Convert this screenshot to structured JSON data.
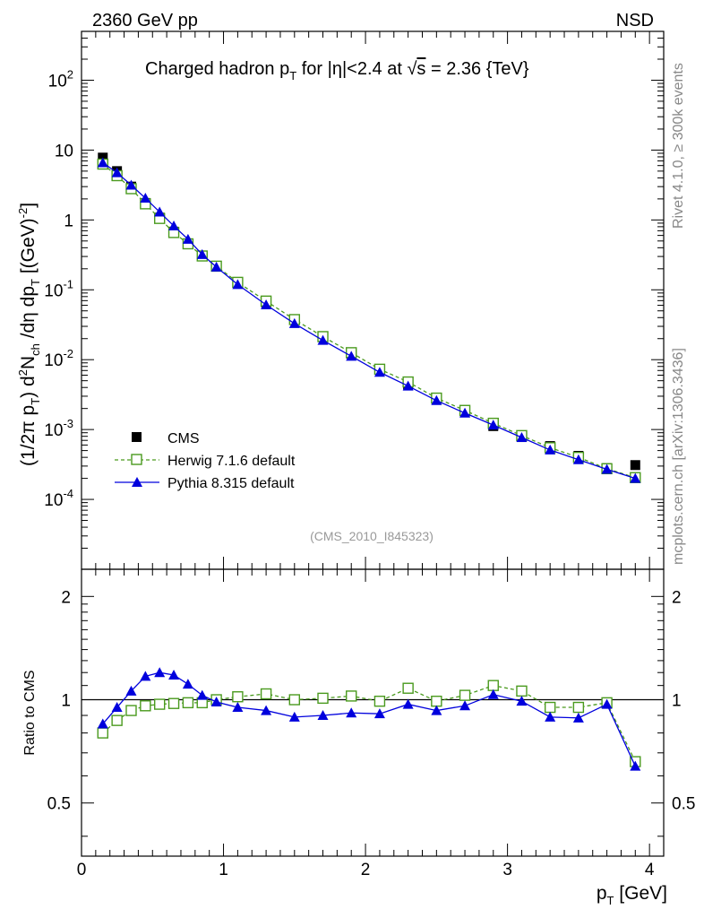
{
  "header": {
    "left": "2360 GeV pp",
    "right": "NSD"
  },
  "side_labels": {
    "rivet": "Rivet 4.1.0, ≥ 300k events",
    "mcplots": "mcplots.cern.ch [arXiv:1306.3436]"
  },
  "watermark": "(CMS_2010_I845323)",
  "chart_data": [
    {
      "type": "scatter",
      "title": "Charged hadron p_T for |η|<2.4 at √s = 2.36 {TeV}",
      "title_parts": {
        "a": "Charged hadron p",
        "a_sub": "T",
        "b": " for |η|<2.4 at ",
        "root": "√",
        "s": "s",
        "c": " = 2.36 {TeV}"
      },
      "ylabel_parts": {
        "a": "(1/2π p",
        "a_sub": "T",
        "b": ") d",
        "b_sup": "2",
        "c": "N",
        "c_sub": "ch",
        "d": " /dη  dp",
        "d_sub": "T",
        "e": " [(GeV)",
        "e_sup": "-2",
        "f": "]"
      },
      "yscale": "log",
      "ylim": [
        1e-05,
        500
      ],
      "xlim": [
        0,
        4.1
      ],
      "y_ticks": [
        {
          "v": 0.0001,
          "base": "10",
          "exp": "-4"
        },
        {
          "v": 0.001,
          "base": "10",
          "exp": "-3"
        },
        {
          "v": 0.01,
          "base": "10",
          "exp": "-2"
        },
        {
          "v": 0.1,
          "base": "10",
          "exp": "-1"
        },
        {
          "v": 1,
          "base": "1",
          "exp": ""
        },
        {
          "v": 10,
          "base": "10",
          "exp": ""
        },
        {
          "v": 100,
          "base": "10",
          "exp": "2"
        }
      ],
      "x": [
        0.15,
        0.25,
        0.35,
        0.45,
        0.55,
        0.65,
        0.75,
        0.85,
        0.95,
        1.1,
        1.3,
        1.5,
        1.7,
        1.9,
        2.1,
        2.3,
        2.5,
        2.7,
        2.9,
        3.1,
        3.3,
        3.5,
        3.7,
        3.9
      ],
      "series": [
        {
          "name": "CMS",
          "style": "filled-square",
          "color": "#000000",
          "values": [
            7.8,
            5.0,
            3.0,
            1.75,
            1.08,
            0.68,
            0.46,
            0.31,
            0.215,
            0.125,
            0.066,
            0.037,
            0.021,
            0.0122,
            0.0073,
            0.0044,
            0.0028,
            0.0018,
            0.00112,
            0.00078,
            0.00058,
            0.00042,
            0.00028,
            0.00031
          ]
        },
        {
          "name": "Herwig 7.1.6 default",
          "style": "open-square-dashed",
          "color": "#4a9a1e",
          "values": [
            6.3,
            4.3,
            2.8,
            1.7,
            1.05,
            0.66,
            0.455,
            0.305,
            0.218,
            0.128,
            0.069,
            0.0375,
            0.0214,
            0.0126,
            0.0073,
            0.0048,
            0.00282,
            0.00188,
            0.00123,
            0.00082,
            0.00055,
            0.0004,
            0.000275,
            0.000205
          ]
        },
        {
          "name": "Pythia 8.315 default",
          "style": "filled-triangle",
          "color": "#0000dd",
          "values": [
            6.6,
            4.75,
            3.15,
            2.05,
            1.3,
            0.82,
            0.53,
            0.32,
            0.212,
            0.119,
            0.061,
            0.0329,
            0.0189,
            0.0112,
            0.0066,
            0.0042,
            0.0026,
            0.00172,
            0.00116,
            0.00077,
            0.00051,
            0.00037,
            0.00027,
            0.0002
          ]
        }
      ]
    },
    {
      "type": "scatter",
      "ylabel": "Ratio to CMS",
      "xlabel_parts": {
        "a": "p",
        "a_sub": "T",
        "b": " [GeV]"
      },
      "ylim": [
        0.35,
        2.4
      ],
      "xlim": [
        0,
        4.1
      ],
      "y_ticks": [
        "0.5",
        "1",
        "2"
      ],
      "x_ticks": [
        "0",
        "1",
        "2",
        "3",
        "4"
      ],
      "reference_line": 1.0,
      "x": [
        0.15,
        0.25,
        0.35,
        0.45,
        0.55,
        0.65,
        0.75,
        0.85,
        0.95,
        1.1,
        1.3,
        1.5,
        1.7,
        1.9,
        2.1,
        2.3,
        2.5,
        2.7,
        2.9,
        3.1,
        3.3,
        3.5,
        3.7,
        3.9
      ],
      "series": [
        {
          "name": "Herwig 7.1.6 default",
          "style": "open-square-dashed",
          "color": "#4a9a1e",
          "values": [
            0.8,
            0.87,
            0.93,
            0.96,
            0.97,
            0.975,
            0.98,
            0.98,
            1.0,
            1.02,
            1.04,
            1.0,
            1.01,
            1.025,
            0.99,
            1.08,
            0.99,
            1.03,
            1.1,
            1.06,
            0.95,
            0.95,
            0.98,
            0.66
          ]
        },
        {
          "name": "Pythia 8.315 default",
          "style": "filled-triangle",
          "color": "#0000dd",
          "values": [
            0.85,
            0.95,
            1.06,
            1.17,
            1.2,
            1.18,
            1.11,
            1.03,
            0.985,
            0.95,
            0.93,
            0.89,
            0.9,
            0.915,
            0.91,
            0.97,
            0.93,
            0.96,
            1.035,
            0.99,
            0.89,
            0.885,
            0.97,
            0.64
          ]
        }
      ]
    }
  ]
}
